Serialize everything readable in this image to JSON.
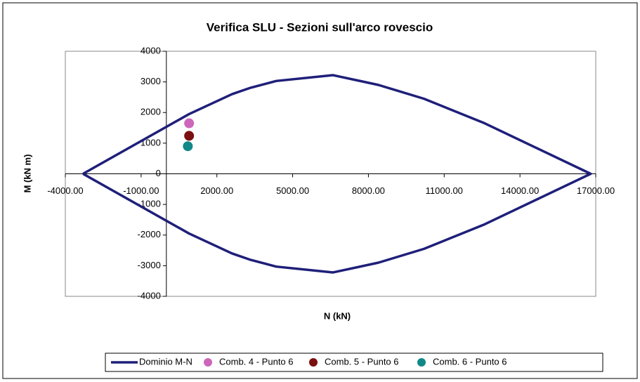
{
  "chart_data": {
    "type": "scatter",
    "title": "Verifica SLU - Sezioni sull'arco rovescio",
    "x_label": "N (kN)",
    "y_label": "M (kN m)",
    "xlim": [
      -4000,
      17000
    ],
    "xticks": [
      {
        "value": -4000,
        "label": "-4000.00"
      },
      {
        "value": -1000,
        "label": "-1000.00"
      },
      {
        "value": 2000,
        "label": "2000.00"
      },
      {
        "value": 5000,
        "label": "5000.00"
      },
      {
        "value": 8000,
        "label": "8000.00"
      },
      {
        "value": 11000,
        "label": "11000.00"
      },
      {
        "value": 14000,
        "label": "14000.00"
      },
      {
        "value": 17000,
        "label": "17000.00"
      }
    ],
    "ylim": [
      -4000,
      4000
    ],
    "yticks": [
      -4000,
      -3000,
      -2000,
      -1000,
      0,
      1000,
      2000,
      3000,
      4000
    ],
    "grid": false,
    "legend": "bottom",
    "series": [
      {
        "name": "Dominio M-N",
        "color": "#1f1f7a",
        "line": true,
        "x": [
          -3300,
          900,
          2600,
          3300,
          4350,
          6600,
          8400,
          10200,
          12600,
          16800,
          12600,
          10200,
          8400,
          6600,
          4350,
          3300,
          2600,
          900,
          -3300
        ],
        "values": [
          0,
          1950,
          2600,
          2800,
          3030,
          3220,
          2900,
          2450,
          1650,
          0,
          -1650,
          -2450,
          -2900,
          -3220,
          -3030,
          -2800,
          -2600,
          -1950,
          0
        ]
      },
      {
        "name": "Comb. 4 - Punto 6",
        "color": "#cc66bb",
        "line": false,
        "x": [
          900
        ],
        "values": [
          1650
        ]
      },
      {
        "name": "Comb. 5 - Punto 6",
        "color": "#7a1010",
        "line": false,
        "x": [
          900
        ],
        "values": [
          1240
        ]
      },
      {
        "name": "Comb. 6 - Punto 6",
        "color": "#118888",
        "line": false,
        "x": [
          850
        ],
        "values": [
          900
        ]
      }
    ]
  }
}
